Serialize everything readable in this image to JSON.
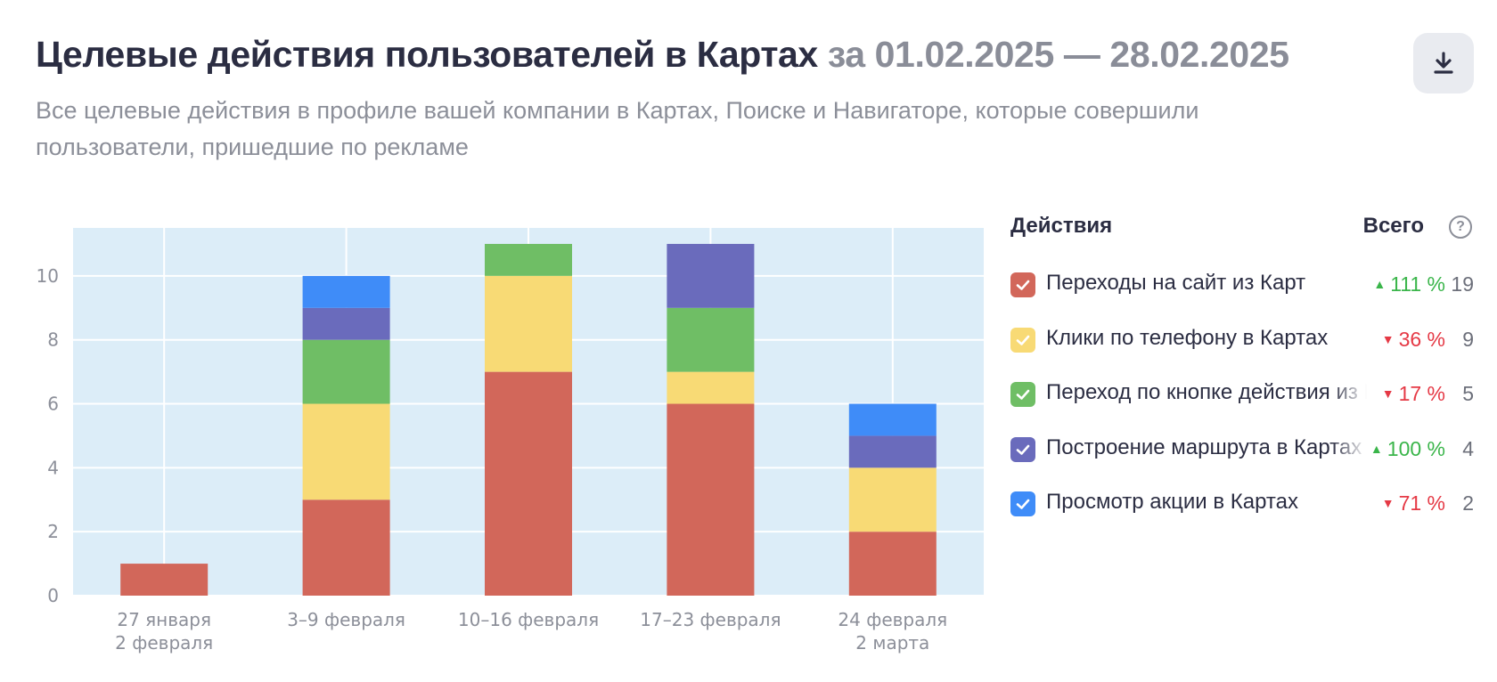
{
  "header": {
    "title": "Целевые действия пользователей в Картах",
    "period": "за 01.02.2025 — 28.02.2025",
    "subtitle": "Все целевые действия в профиле вашей компании в Картах, Поиске и Навигаторе, которые совершили пользователи, пришедшие по рекламе",
    "download_icon": "download-icon"
  },
  "legend": {
    "title": "Действия",
    "total_label": "Всего",
    "help_glyph": "?",
    "items": [
      {
        "label": "Переходы на сайт из Карт",
        "change": "111 %",
        "direction": "up",
        "arrow": "▲",
        "total": "19",
        "color": "#d2675a",
        "checked": true
      },
      {
        "label": "Клики по телефону в Картах",
        "change": "36 %",
        "direction": "down",
        "arrow": "▼",
        "total": "9",
        "color": "#f8da75",
        "checked": true
      },
      {
        "label": "Переход по кнопке действия из Карт",
        "change": "17 %",
        "direction": "down",
        "arrow": "▼",
        "total": "5",
        "color": "#6fbe65",
        "checked": true
      },
      {
        "label": "Построение маршрута в Картах",
        "change": "100 %",
        "direction": "up",
        "arrow": "▲",
        "total": "4",
        "color": "#6a6bbc",
        "checked": true
      },
      {
        "label": "Просмотр акции в Картах",
        "change": "71 %",
        "direction": "down",
        "arrow": "▼",
        "total": "2",
        "color": "#3f8cf8",
        "checked": true
      }
    ]
  },
  "chart_data": {
    "type": "bar",
    "stacked": true,
    "categories": [
      [
        "27 января",
        "2 февраля"
      ],
      [
        "3–9 февраля"
      ],
      [
        "10–16 февраля"
      ],
      [
        "17–23 февраля"
      ],
      [
        "24 февраля",
        "2 марта"
      ]
    ],
    "yticks": [
      0,
      2,
      4,
      6,
      8,
      10
    ],
    "ylim": [
      0,
      11.5
    ],
    "grid": true,
    "plot_background": "#dcedf8",
    "series": [
      {
        "name": "Переходы на сайт из Карт",
        "color": "#d2675a",
        "values": [
          1,
          3,
          7,
          6,
          2
        ]
      },
      {
        "name": "Клики по телефону в Картах",
        "color": "#f8da75",
        "values": [
          0,
          3,
          3,
          1,
          2
        ]
      },
      {
        "name": "Переход по кнопке действия из Карт",
        "color": "#6fbe65",
        "values": [
          0,
          2,
          1,
          2,
          0
        ]
      },
      {
        "name": "Построение маршрута в Картах",
        "color": "#6a6bbc",
        "values": [
          0,
          1,
          0,
          2,
          1
        ]
      },
      {
        "name": "Просмотр акции в Картах",
        "color": "#3f8cf8",
        "values": [
          0,
          1,
          0,
          0,
          1
        ]
      }
    ]
  }
}
